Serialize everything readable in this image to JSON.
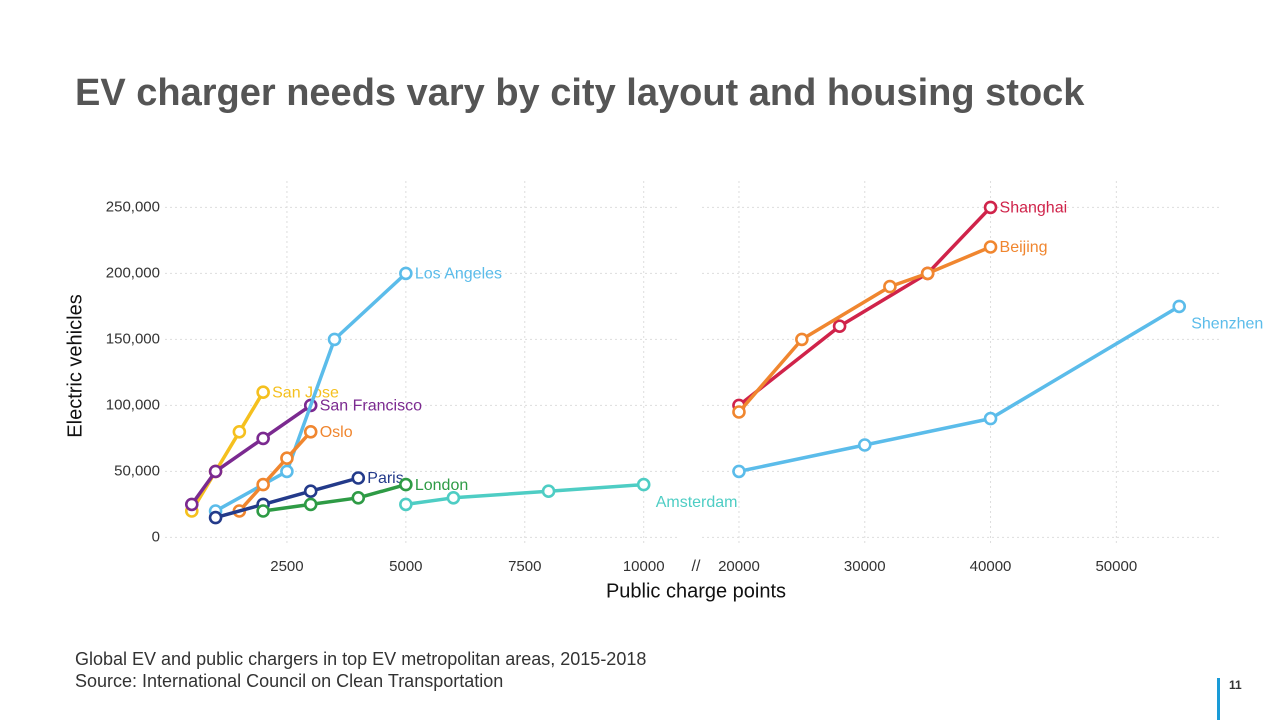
{
  "title": "EV charger needs vary by city layout and housing stock",
  "ylabel": "Electric vehicles",
  "xlabel": "Public charge points",
  "axis_break": "//",
  "footnote": "Global EV and public chargers in top EV metropolitan areas, 2015-2018",
  "source": "Source: International Council on Clean Transportation",
  "page_number": "11",
  "chart_data": [
    {
      "type": "line",
      "xlim": [
        0,
        10700
      ],
      "ylim": [
        -5000,
        270000
      ],
      "xticks": [
        2500,
        5000,
        7500,
        10000
      ],
      "yticks": [
        0,
        {
          "value": 50000,
          "label": "50,000"
        },
        {
          "value": 100000,
          "label": "100,000"
        },
        {
          "value": 150000,
          "label": "150,000"
        },
        {
          "value": 200000,
          "label": "200,000"
        },
        {
          "value": 250000,
          "label": "250,000"
        }
      ],
      "grid": true,
      "series": [
        {
          "name": "San Jose",
          "color": "#f5c01e",
          "x": [
            500,
            1000,
            1500,
            2000
          ],
          "y": [
            20000,
            50000,
            80000,
            110000
          ]
        },
        {
          "name": "San Francisco",
          "color": "#7b2a90",
          "x": [
            500,
            1000,
            2000,
            3000
          ],
          "y": [
            25000,
            50000,
            75000,
            100000
          ]
        },
        {
          "name": "Los Angeles",
          "color": "#5bbcea",
          "x": [
            1000,
            2500,
            3500,
            5000
          ],
          "y": [
            20000,
            50000,
            150000,
            200000
          ]
        },
        {
          "name": "Oslo",
          "color": "#f0862f",
          "x": [
            1500,
            2000,
            2500,
            3000
          ],
          "y": [
            20000,
            40000,
            60000,
            80000
          ]
        },
        {
          "name": "Paris",
          "color": "#233a8a",
          "x": [
            1000,
            2000,
            3000,
            4000
          ],
          "y": [
            15000,
            25000,
            35000,
            45000
          ]
        },
        {
          "name": "London",
          "color": "#2e9b45",
          "x": [
            2000,
            3000,
            4000,
            5000
          ],
          "y": [
            20000,
            25000,
            30000,
            40000
          ]
        },
        {
          "name": "Amsterdam",
          "color": "#4ecdc4",
          "x": [
            5000,
            6000,
            8000,
            10000
          ],
          "y": [
            25000,
            30000,
            35000,
            40000
          ]
        }
      ]
    },
    {
      "type": "line",
      "xlim": [
        17300,
        58400
      ],
      "ylim": [
        -5000,
        270000
      ],
      "xticks": [
        20000,
        30000,
        40000,
        50000
      ],
      "yticks": [
        0,
        50000,
        100000,
        150000,
        200000,
        250000
      ],
      "grid": true,
      "series": [
        {
          "name": "Shanghai",
          "color": "#d0234a",
          "x": [
            20000,
            28000,
            35000,
            40000
          ],
          "y": [
            100000,
            160000,
            200000,
            250000
          ]
        },
        {
          "name": "Beijing",
          "color": "#f0862f",
          "x": [
            20000,
            25000,
            32000,
            35000,
            40000
          ],
          "y": [
            95000,
            150000,
            190000,
            200000,
            220000
          ]
        },
        {
          "name": "Shenzhen",
          "color": "#5bbcea",
          "x": [
            20000,
            30000,
            40000,
            55000
          ],
          "y": [
            50000,
            70000,
            90000,
            175000
          ]
        }
      ]
    }
  ]
}
